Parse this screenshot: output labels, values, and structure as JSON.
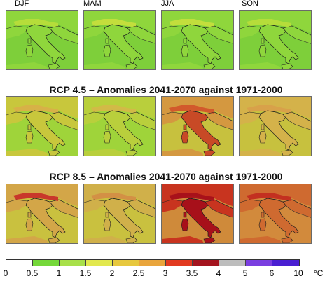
{
  "seasons": [
    "DJF",
    "MAM",
    "JJA",
    "SON"
  ],
  "sections": [
    {
      "title": ""
    },
    {
      "title": "RCP 4.5 – Anomalies 2041-2070 against 1971-2000"
    },
    {
      "title": "RCP 8.5 – Anomalies 2041-2070 against 1971-2000"
    }
  ],
  "maps": [
    [
      {
        "sea_color": "#7ecf3a",
        "land_color": "#8fd63c",
        "alps_color": "#b8dd3a",
        "hot_color": "#8fd63c"
      },
      {
        "sea_color": "#7ecf3a",
        "land_color": "#8fd63c",
        "alps_color": "#c6de3c",
        "hot_color": "#8fd63c"
      },
      {
        "sea_color": "#7ecf3a",
        "land_color": "#8fd63c",
        "alps_color": "#c6de3c",
        "hot_color": "#8fd63c"
      },
      {
        "sea_color": "#7ecf3a",
        "land_color": "#8fd63c",
        "alps_color": "#b8dd3a",
        "hot_color": "#8fd63c"
      }
    ],
    [
      {
        "sea_color": "#9fd43a",
        "land_color": "#c8c73c",
        "alps_color": "#d8b048",
        "hot_color": "#c8c73c"
      },
      {
        "sea_color": "#9fd43a",
        "land_color": "#b9cf3c",
        "alps_color": "#d3b848",
        "hot_color": "#b9cf3c"
      },
      {
        "sea_color": "#c7c13e",
        "land_color": "#d49840",
        "alps_color": "#d2552b",
        "hot_color": "#c84a26"
      },
      {
        "sea_color": "#c7c13e",
        "land_color": "#d4b24a",
        "alps_color": "#d8a04a",
        "hot_color": "#d4b24a"
      }
    ],
    [
      {
        "sea_color": "#c9c13f",
        "land_color": "#d3a648",
        "alps_color": "#c8302a",
        "hot_color": "#d3a648"
      },
      {
        "sea_color": "#c9c13f",
        "land_color": "#d0b04a",
        "alps_color": "#d38e44",
        "hot_color": "#d0b04a"
      },
      {
        "sea_color": "#cf8a3a",
        "land_color": "#c8341f",
        "alps_color": "#a7101a",
        "hot_color": "#a7101a"
      },
      {
        "sea_color": "#d28a3c",
        "land_color": "#cf6a30",
        "alps_color": "#c22d20",
        "hot_color": "#cf6a30"
      }
    ]
  ],
  "colorbar": {
    "ticks": [
      "0",
      "0.5",
      "1",
      "1.5",
      "2",
      "2.5",
      "3",
      "3.5",
      "4",
      "5",
      "6",
      "10"
    ],
    "colors": [
      "#ffffff",
      "#75d83a",
      "#a8e04a",
      "#e2e84e",
      "#e7c83e",
      "#e9a53c",
      "#e23a20",
      "#a4141e",
      "#bdbdbd",
      "#7a3ee0",
      "#4a1fd2"
    ],
    "unit": "°C"
  }
}
